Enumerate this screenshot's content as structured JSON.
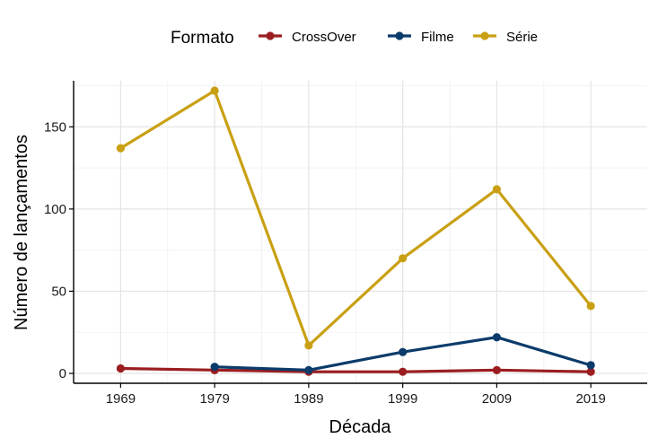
{
  "chart_data": {
    "type": "line",
    "xlabel": "Década",
    "ylabel": "Número de lançamentos",
    "categories": [
      "1969",
      "1979",
      "1989",
      "1999",
      "2009",
      "2019"
    ],
    "xlim": [
      1964,
      2025
    ],
    "ylim": [
      -6,
      178
    ],
    "yticks": [
      0,
      50,
      100,
      150
    ],
    "grid": true,
    "legend": {
      "title": "Formato",
      "position": "top"
    },
    "series": [
      {
        "name": "CrossOver",
        "color": "#9B1D20",
        "x": [
          1969,
          1979,
          1989,
          1999,
          2009,
          2019
        ],
        "values": [
          3,
          2,
          1,
          1,
          2,
          1
        ]
      },
      {
        "name": "Filme",
        "color": "#0B3B6A",
        "x": [
          1979,
          1989,
          1999,
          2009,
          2019
        ],
        "values": [
          4,
          2,
          13,
          22,
          5
        ]
      },
      {
        "name": "Série",
        "color": "#C9A013",
        "x": [
          1969,
          1979,
          1989,
          1999,
          2009,
          2019
        ],
        "values": [
          137,
          172,
          17,
          70,
          112,
          41
        ]
      }
    ]
  }
}
